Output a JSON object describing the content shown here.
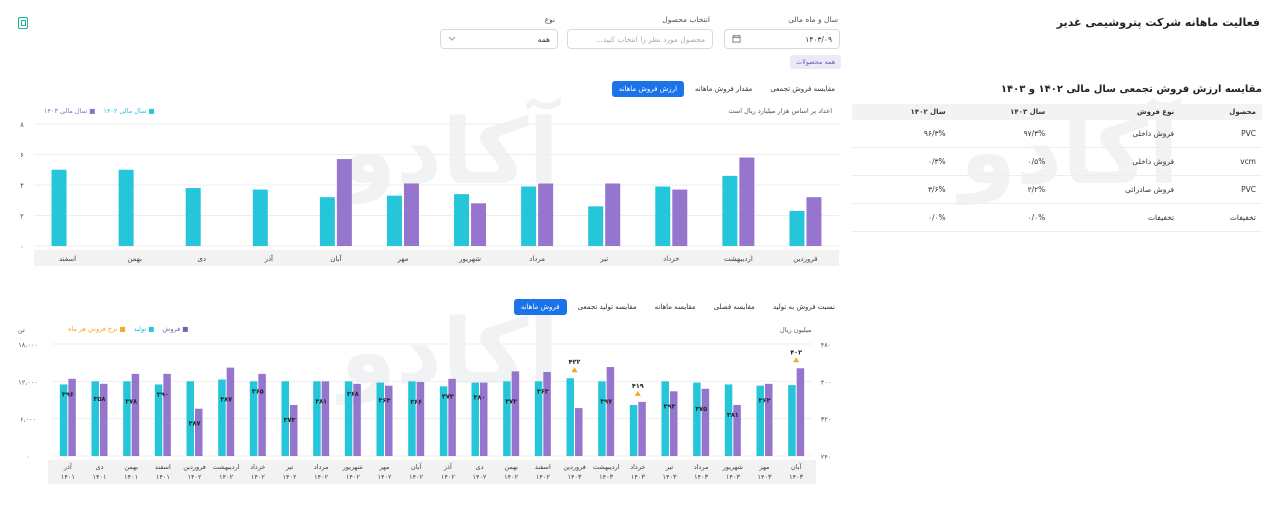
{
  "header": {
    "title": "فعالیت ماهانه شرکت پتروشیمی غدیر"
  },
  "filters": {
    "year_month_label": "سال و ماه مالی",
    "year_month_value": "۱۴۰۳/۰۹",
    "product_label": "انتخاب محصول",
    "product_placeholder": "محصول مورد نظر را انتخاب کنید...",
    "type_label": "نوع",
    "type_value": "همه",
    "chip": "همه محصولات"
  },
  "colors": {
    "teal": "#26c6da",
    "purple": "#9575cd",
    "orange": "#f5a623",
    "accent": "#1a73e8"
  },
  "watermark": "آکادو",
  "top_chart": {
    "tabs": [
      "ارزش فروش ماهانه",
      "مقدار فروش ماهانه",
      "مقایسه فروش تجمعی"
    ],
    "note": "اعداد بر اساس هزار میلیارد ریال است",
    "legend": [
      "سال مالی ۱۴۰۳",
      "سال مالی ۱۴۰۲"
    ]
  },
  "table": {
    "title": "مقایسه ارزش فروش تجمعی سال مالی ۱۴۰۲ و ۱۴۰۳",
    "headers": [
      "محصول",
      "نوع فروش",
      "سال ۱۴۰۳",
      "سال ۱۴۰۲"
    ],
    "rows": [
      [
        "PVC",
        "فروش داخلی",
        "۹۷/۳%",
        "۹۶/۳%"
      ],
      [
        "vcm",
        "فروش داخلی",
        "۰/۵%",
        "۰/۳%"
      ],
      [
        "PVC",
        "فروش صادراتی",
        "۲/۲%",
        "۳/۶%"
      ],
      [
        "تخفیفات",
        "تخفیفات",
        "۰/۰%",
        "۰/۰%"
      ]
    ]
  },
  "bottom_chart": {
    "tabs": [
      "فروش ماهانه",
      "مقایسه تولید تجمعی",
      "مقایسه ماهانه",
      "مقایسه فصلی",
      "نسبت فروش به تولید"
    ],
    "left_unit": "تن",
    "right_unit": "میلیون ریال",
    "legend": [
      "فروش",
      "تولید",
      "نرخ فروش هر ماه"
    ]
  },
  "chart_data": [
    {
      "type": "bar",
      "title": "",
      "note": "اعداد بر اساس هزار میلیارد ریال است",
      "categories": [
        "فروردین",
        "اردیبهشت",
        "خرداد",
        "تیر",
        "مرداد",
        "شهریور",
        "مهر",
        "آبان",
        "آذر",
        "دی",
        "بهمن",
        "اسفند"
      ],
      "series": [
        {
          "name": "سال مالی ۱۴۰۳",
          "values": [
            2.3,
            4.6,
            3.9,
            2.6,
            3.9,
            3.4,
            3.3,
            3.2,
            3.7,
            3.8,
            5.0,
            5.0
          ]
        },
        {
          "name": "سال مالی ۱۴۰۲",
          "values": [
            3.2,
            5.8,
            3.7,
            4.1,
            4.1,
            2.8,
            4.1,
            5.7,
            null,
            null,
            null,
            null
          ]
        }
      ],
      "ylim": [
        0,
        8
      ],
      "yticks": [
        "۰",
        "۲",
        "۴",
        "۶",
        "۸"
      ],
      "legend_position": "top-left",
      "grid": true
    },
    {
      "type": "bar",
      "title": "",
      "categories": [
        "آذر ۱۴۰۱",
        "دی ۱۴۰۱",
        "بهمن ۱۴۰۱",
        "اسفند ۱۴۰۱",
        "فروردین ۱۴۰۲",
        "اردیبهشت ۱۴۰۲",
        "خرداد ۱۴۰۲",
        "تیر ۱۴۰۲",
        "مرداد ۱۴۰۲",
        "شهریور ۱۴۰۲",
        "مهر ۱۴۰۲",
        "آبان ۱۴۰۲",
        "آذر ۱۴۰۲",
        "دی ۱۴۰۲",
        "بهمن ۱۴۰۲",
        "اسفند ۱۴۰۲",
        "فروردین ۱۴۰۳",
        "اردیبهشت ۱۴۰۳",
        "خرداد ۱۴۰۳",
        "تیر ۱۴۰۳",
        "مرداد ۱۴۰۳",
        "شهریور ۱۴۰۳",
        "مهر ۱۴۰۳",
        "آبان ۱۴۰۳"
      ],
      "series": [
        {
          "name": "تولید",
          "values": [
            11500,
            12000,
            12000,
            11500,
            12000,
            12300,
            12000,
            12000,
            12000,
            12000,
            11800,
            12000,
            11200,
            11800,
            12000,
            12000,
            12500,
            12000,
            8200,
            12000,
            11800,
            11500,
            11300,
            11400
          ]
        },
        {
          "name": "فروش",
          "values": [
            12400,
            11600,
            13200,
            13200,
            7600,
            14200,
            13200,
            8200,
            12000,
            11600,
            11300,
            11900,
            12400,
            11800,
            13600,
            13500,
            7700,
            14300,
            8700,
            10400,
            10800,
            8200,
            11600,
            14100
          ]
        }
      ],
      "rate_labels": [
        "۳۹۶",
        "۳۵۸",
        "۳۷۸",
        "۳۹۰",
        "۳۸۷",
        "۳۸۷",
        "۳۶۵",
        "۳۷۳",
        "۳۸۱",
        "۳۶۸",
        "۳۶۳",
        "۳۶۶",
        "۳۷۲",
        "۳۸۰",
        "۳۷۲",
        "۳۶۳",
        "۴۲۲",
        "۳۹۷",
        "۴۱۹",
        "۳۹۳",
        "۳۷۵",
        "۳۸۱",
        "۳۶۲",
        "۴۰۲"
      ],
      "rate_markers": [
        16,
        18,
        23
      ],
      "left_axis": {
        "unit": "تن",
        "ticks": [
          "۰",
          "۶,۰۰۰",
          "۱۲,۰۰۰",
          "۱۸,۰۰۰"
        ],
        "ylim": [
          0,
          18000
        ]
      },
      "right_axis": {
        "unit": "میلیون ریال",
        "ticks": [
          "۲۴۰",
          "۳۲۰",
          "۴۰۰",
          "۴۸۰"
        ],
        "ylim": [
          240,
          480
        ]
      },
      "legend_position": "top-left",
      "grid": true
    }
  ]
}
